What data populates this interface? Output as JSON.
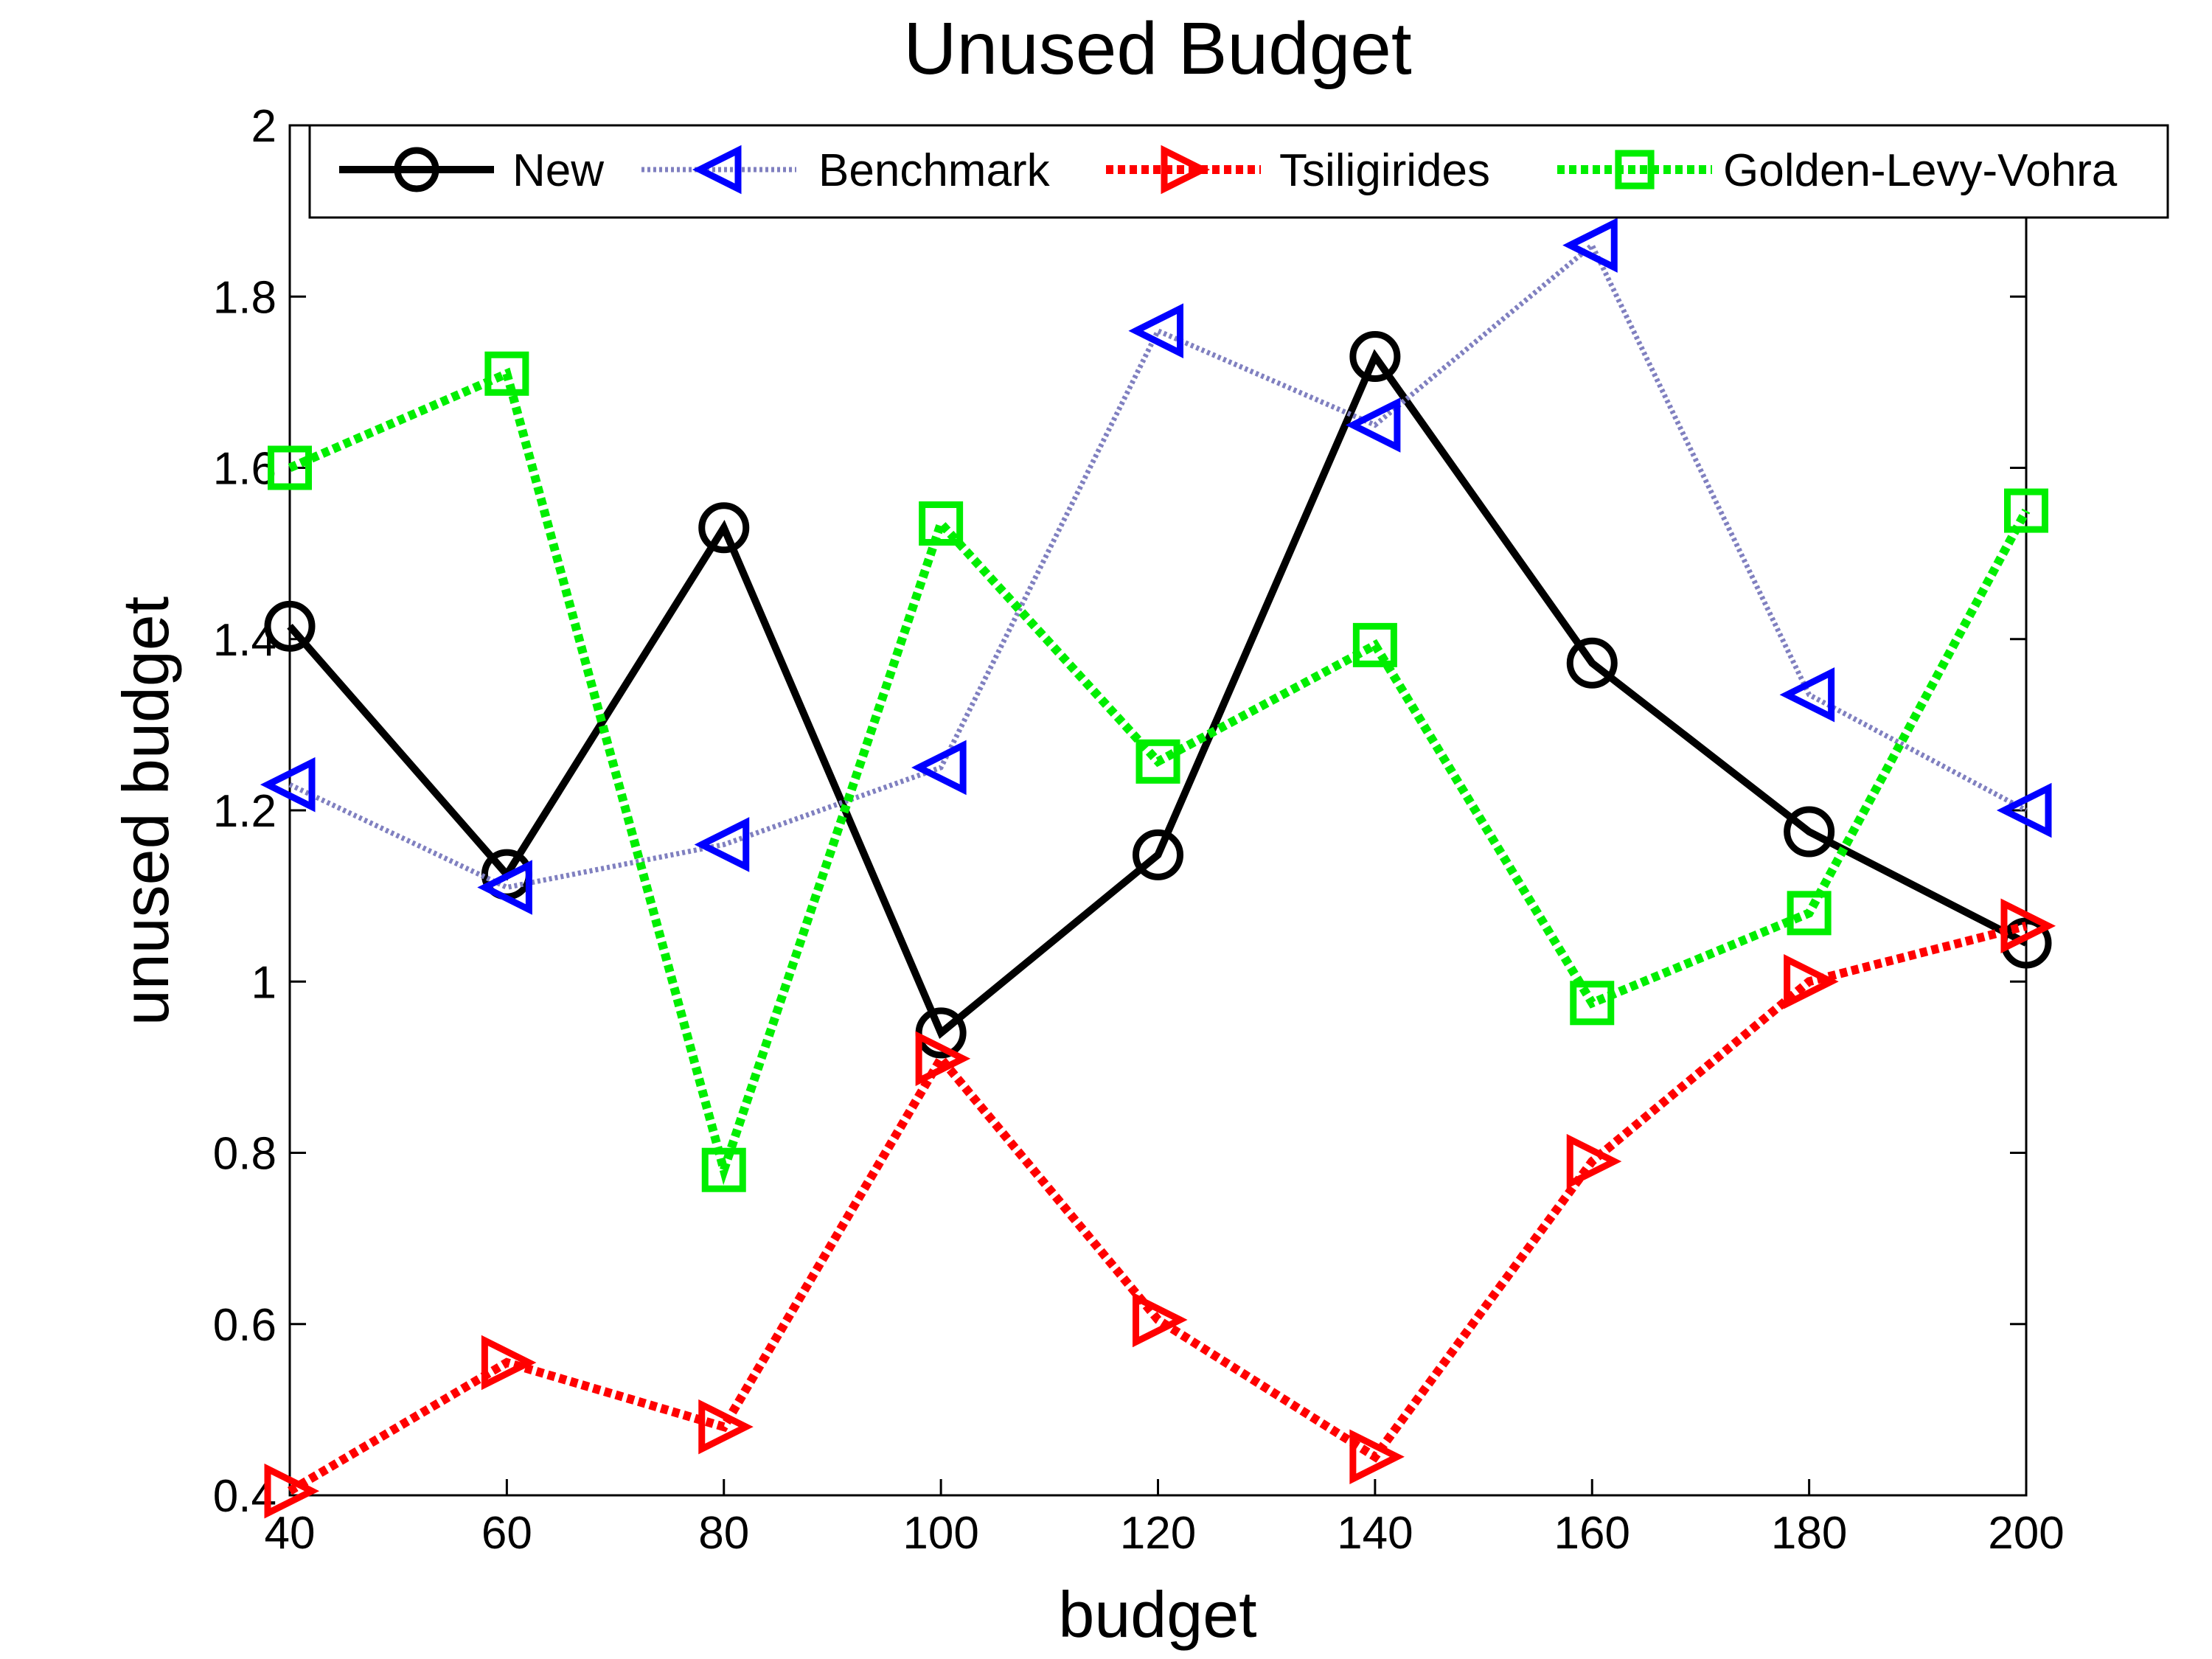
{
  "chart_data": {
    "type": "line",
    "title": "Unused Budget",
    "xlabel": "budget",
    "ylabel": "unused budget",
    "x": [
      40,
      60,
      80,
      100,
      120,
      140,
      160,
      180,
      200
    ],
    "xlim": [
      40,
      200
    ],
    "ylim": [
      0.4,
      2
    ],
    "x_ticks": [
      "40",
      "60",
      "80",
      "100",
      "120",
      "140",
      "160",
      "180",
      "200"
    ],
    "y_ticks": [
      "0.4",
      "0.6",
      "0.8",
      "1",
      "1.2",
      "1.4",
      "1.6",
      "1.8",
      "2"
    ],
    "legend_position": "top",
    "grid": false,
    "series": [
      {
        "name": "New",
        "color": "#000000",
        "marker": "circle",
        "line_style": "solid",
        "values": [
          1.415,
          1.125,
          1.53,
          0.94,
          1.148,
          1.73,
          1.372,
          1.175,
          1.045
        ]
      },
      {
        "name": "Benchmark",
        "color": "#0000ff",
        "line_color": "#8080c0",
        "marker": "triangle-left",
        "line_style": "dotted",
        "values": [
          1.23,
          1.11,
          1.16,
          1.25,
          1.76,
          1.65,
          1.86,
          1.335,
          1.2
        ]
      },
      {
        "name": "Tsiligirides",
        "color": "#ff0000",
        "marker": "triangle-right",
        "line_style": "dotted",
        "values": [
          0.405,
          0.555,
          0.48,
          0.91,
          0.605,
          0.445,
          0.79,
          1.0,
          1.065
        ]
      },
      {
        "name": "Golden-Levy-Vohra",
        "color": "#00ee00",
        "marker": "square",
        "line_style": "dotted",
        "values": [
          1.6,
          1.71,
          0.78,
          1.535,
          1.257,
          1.393,
          0.975,
          1.08,
          1.55
        ]
      }
    ]
  }
}
